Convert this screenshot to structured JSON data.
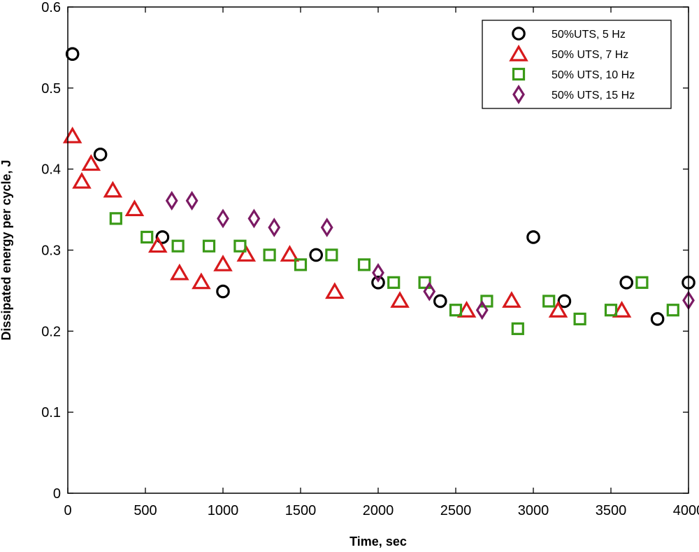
{
  "chart_data": {
    "type": "scatter",
    "title": "",
    "xlabel": "Time, sec",
    "ylabel": "Dissipated energy per cycle, J",
    "xlim": [
      0,
      4000
    ],
    "ylim": [
      0,
      0.6
    ],
    "xticks": [
      0,
      500,
      1000,
      1500,
      2000,
      2500,
      3000,
      3500,
      4000
    ],
    "yticks": [
      0,
      0.1,
      0.2,
      0.3,
      0.4,
      0.5,
      0.6
    ],
    "grid": false,
    "legend_position": "top-right",
    "series": [
      {
        "name": "50%UTS, 5 Hz",
        "marker": "circle",
        "color": "#000000",
        "x": [
          30,
          210,
          610,
          1000,
          1600,
          2000,
          2400,
          3000,
          3200,
          3600,
          3800,
          4000
        ],
        "y": [
          0.542,
          0.418,
          0.316,
          0.249,
          0.294,
          0.26,
          0.237,
          0.316,
          0.237,
          0.26,
          0.215,
          0.26
        ]
      },
      {
        "name": "50% UTS, 7 Hz",
        "marker": "triangle",
        "color": "#d7191c",
        "x": [
          30,
          90,
          150,
          290,
          430,
          580,
          720,
          860,
          1000,
          1150,
          1430,
          1720,
          2140,
          2570,
          2860,
          3160,
          3570
        ],
        "y": [
          0.441,
          0.385,
          0.407,
          0.374,
          0.351,
          0.306,
          0.272,
          0.261,
          0.283,
          0.295,
          0.295,
          0.249,
          0.238,
          0.226,
          0.238,
          0.226,
          0.226
        ]
      },
      {
        "name": "50% UTS, 10 Hz",
        "marker": "square",
        "color": "#3a9a17",
        "x": [
          310,
          510,
          710,
          910,
          1110,
          1300,
          1500,
          1700,
          1910,
          2100,
          2300,
          2500,
          2700,
          2900,
          3100,
          3300,
          3500,
          3700,
          3900
        ],
        "y": [
          0.339,
          0.316,
          0.305,
          0.305,
          0.305,
          0.294,
          0.282,
          0.294,
          0.282,
          0.26,
          0.26,
          0.226,
          0.237,
          0.203,
          0.237,
          0.215,
          0.226,
          0.26,
          0.226
        ]
      },
      {
        "name": "50% UTS, 15 Hz",
        "marker": "diamond",
        "color": "#7b1a64",
        "x": [
          670,
          800,
          1000,
          1200,
          1330,
          1670,
          2000,
          2330,
          2670,
          4000
        ],
        "y": [
          0.361,
          0.361,
          0.339,
          0.339,
          0.328,
          0.328,
          0.272,
          0.249,
          0.226,
          0.238
        ]
      }
    ]
  }
}
